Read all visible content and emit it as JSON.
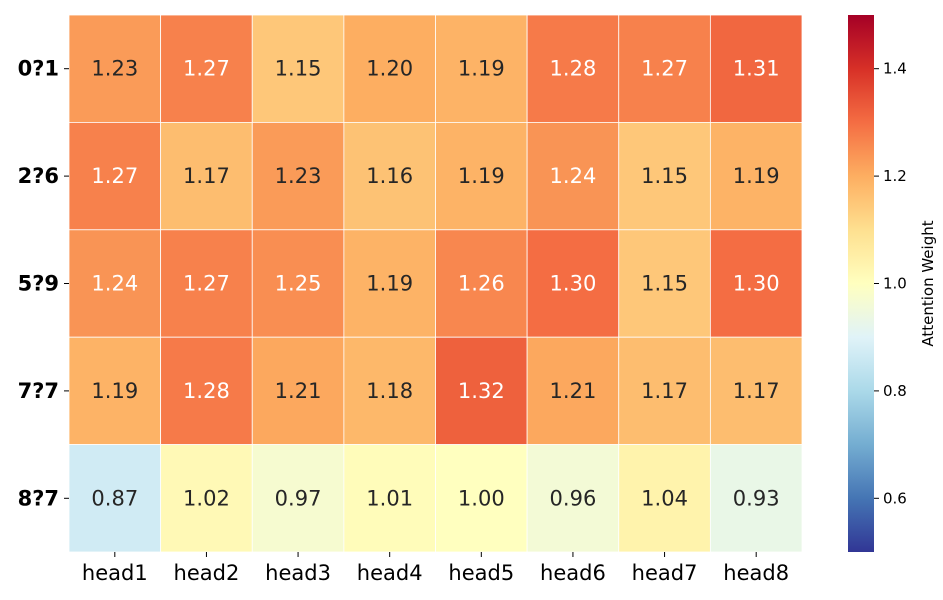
{
  "chart_data": {
    "type": "heatmap",
    "title": "",
    "xlabel": "",
    "ylabel": "",
    "x_categories": [
      "head1",
      "head2",
      "head3",
      "head4",
      "head5",
      "head6",
      "head7",
      "head8"
    ],
    "y_categories": [
      "0?1",
      "2?6",
      "5?9",
      "7?7",
      "8?7"
    ],
    "values": [
      [
        1.23,
        1.27,
        1.15,
        1.2,
        1.19,
        1.28,
        1.27,
        1.31
      ],
      [
        1.27,
        1.17,
        1.23,
        1.16,
        1.19,
        1.24,
        1.15,
        1.19
      ],
      [
        1.24,
        1.27,
        1.25,
        1.19,
        1.26,
        1.3,
        1.15,
        1.3
      ],
      [
        1.19,
        1.28,
        1.21,
        1.18,
        1.32,
        1.21,
        1.17,
        1.17
      ],
      [
        0.87,
        1.02,
        0.97,
        1.01,
        1.0,
        0.96,
        1.04,
        0.93
      ]
    ],
    "value_labels": [
      [
        "1.23",
        "1.27",
        "1.15",
        "1.20",
        "1.19",
        "1.28",
        "1.27",
        "1.31"
      ],
      [
        "1.27",
        "1.17",
        "1.23",
        "1.16",
        "1.19",
        "1.24",
        "1.15",
        "1.19"
      ],
      [
        "1.24",
        "1.27",
        "1.25",
        "1.19",
        "1.26",
        "1.30",
        "1.15",
        "1.30"
      ],
      [
        "1.19",
        "1.28",
        "1.21",
        "1.18",
        "1.32",
        "1.21",
        "1.17",
        "1.17"
      ],
      [
        "0.87",
        "1.02",
        "0.97",
        "1.01",
        "1.00",
        "0.96",
        "1.04",
        "0.93"
      ]
    ],
    "colormap": "RdYlBu_r",
    "vmin": 0.5,
    "vmax": 1.5,
    "colorbar": {
      "label": "Attention Weight",
      "ticks": [
        0.6,
        0.8,
        1.0,
        1.2,
        1.4
      ],
      "tick_labels": [
        "0.6",
        "0.8",
        "1.0",
        "1.2",
        "1.4"
      ]
    },
    "grid": true
  }
}
